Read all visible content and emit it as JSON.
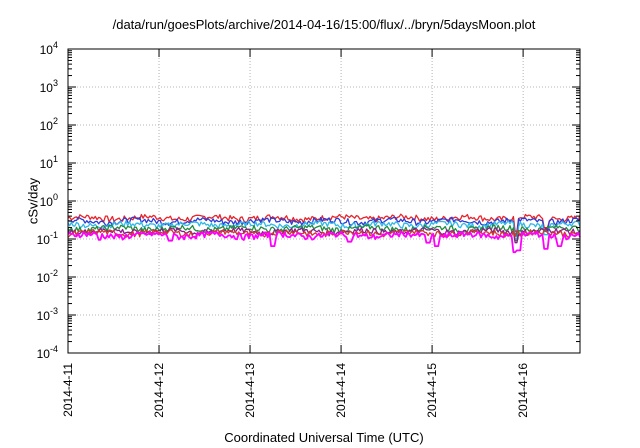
{
  "chart_data": {
    "type": "line",
    "title": "/data/run/goesPlots/archive/2014-04-16/15:00/flux/../bryn/5daysMoon.plot",
    "xlabel": "Coordinated Universal Time (UTC)",
    "ylabel": "cSv/day",
    "yscale": "log",
    "ylim": [
      0.0001,
      10000
    ],
    "y_ticks": [
      {
        "base": "10",
        "exp": "-4"
      },
      {
        "base": "10",
        "exp": "-3"
      },
      {
        "base": "10",
        "exp": "-2"
      },
      {
        "base": "10",
        "exp": "-1"
      },
      {
        "base": "10",
        "exp": "0"
      },
      {
        "base": "10",
        "exp": "1"
      },
      {
        "base": "10",
        "exp": "2"
      },
      {
        "base": "10",
        "exp": "3"
      },
      {
        "base": "10",
        "exp": "4"
      }
    ],
    "xlim": [
      "2014-04-11",
      "2014-04-16 15:00"
    ],
    "x_ticks": [
      "2014-4-11",
      "2014-4-12",
      "2014-4-13",
      "2014-4-14",
      "2014-4-15",
      "2014-4-16"
    ],
    "grid": true,
    "series": [
      {
        "color": "#e8232a",
        "level": 0.36,
        "dips": [
          {
            "x": 4.92,
            "y": 0.16
          },
          {
            "x": 5.25,
            "y": 0.2
          }
        ]
      },
      {
        "color": "#2d3bd6",
        "level": 0.3,
        "dips": [
          {
            "x": 4.92,
            "y": 0.12
          },
          {
            "x": 5.25,
            "y": 0.16
          }
        ]
      },
      {
        "color": "#2fb8e8",
        "level": 0.24,
        "dips": [
          {
            "x": 4.92,
            "y": 0.1
          },
          {
            "x": 5.25,
            "y": 0.13
          }
        ]
      },
      {
        "color": "#1e8c3c",
        "level": 0.19,
        "dips": [
          {
            "x": 4.92,
            "y": 0.09
          }
        ]
      },
      {
        "color": "#8c1a8c",
        "level": 0.16,
        "dips": [
          {
            "x": 4.92,
            "y": 0.08
          }
        ]
      },
      {
        "color": "#d0392a",
        "level": 0.145,
        "dips": []
      },
      {
        "color": "#ff00ff",
        "level": 0.125,
        "dips": [
          {
            "x": 0.35,
            "y": 0.095
          },
          {
            "x": 1.12,
            "y": 0.09
          },
          {
            "x": 2.25,
            "y": 0.065
          },
          {
            "x": 3.1,
            "y": 0.085
          },
          {
            "x": 3.95,
            "y": 0.08
          },
          {
            "x": 4.05,
            "y": 0.065
          },
          {
            "x": 4.9,
            "y": 0.045
          },
          {
            "x": 4.95,
            "y": 0.05
          },
          {
            "x": 5.25,
            "y": 0.055
          },
          {
            "x": 5.4,
            "y": 0.065
          }
        ]
      }
    ]
  }
}
